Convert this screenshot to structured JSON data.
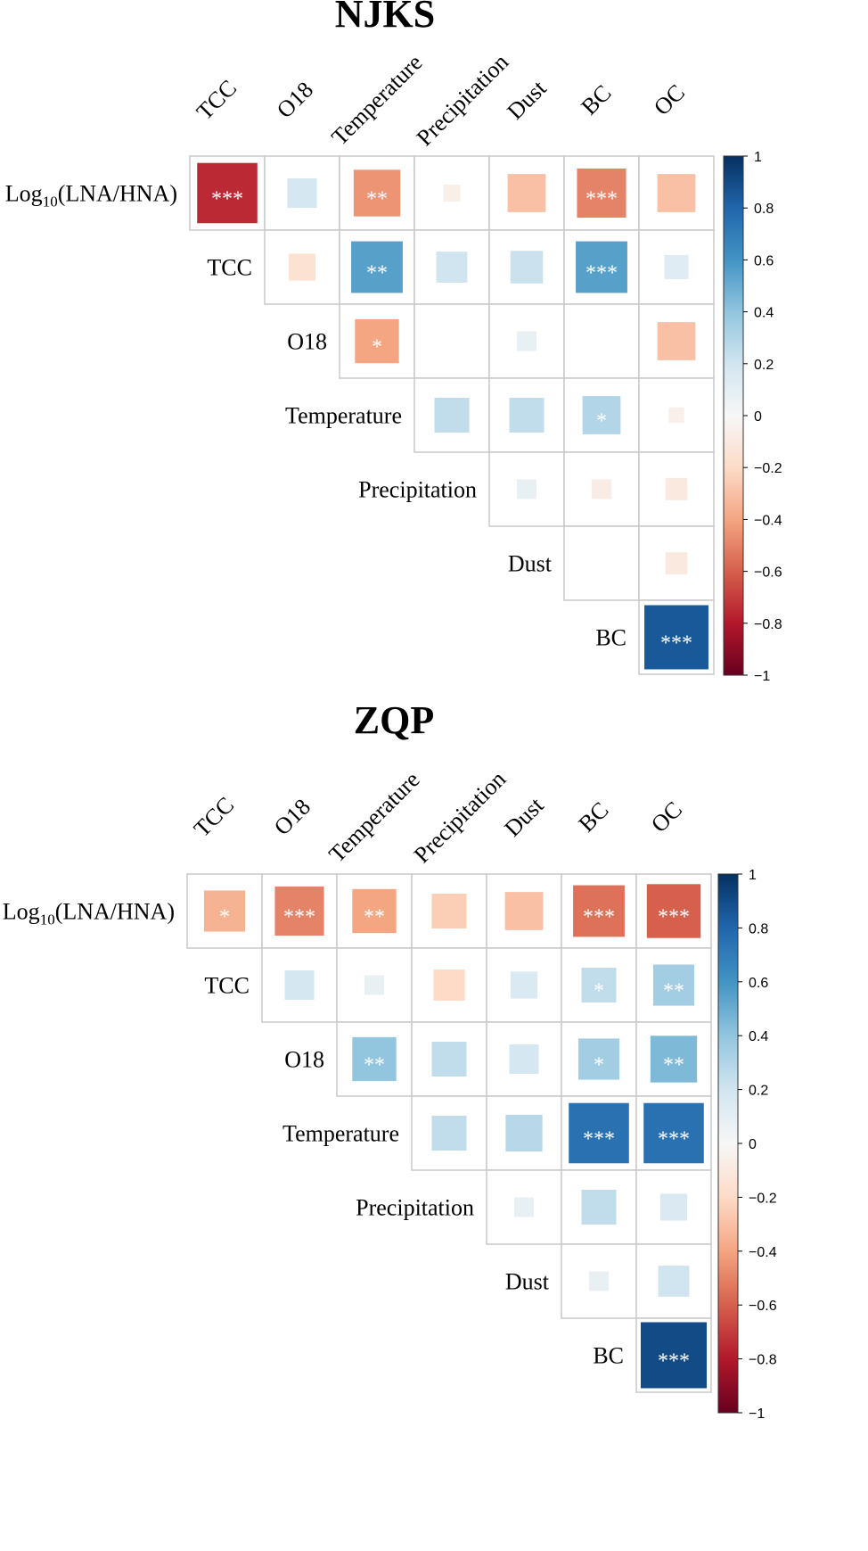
{
  "chart_data": [
    {
      "type": "heatmap",
      "subtype": "correlation-upper-triangle",
      "title": "NJKS",
      "column_labels": [
        "TCC",
        "O18",
        "Temperature",
        "Precipitation",
        "Dust",
        "BC",
        "OC"
      ],
      "row_labels": [
        "Log10(LNA/HNA)",
        "TCC",
        "O18",
        "Temperature",
        "Precipitation",
        "Dust",
        "BC"
      ],
      "row_label_parts": [
        [
          "Log",
          "10",
          "(LNA/HNA)"
        ],
        [
          "TCC"
        ],
        [
          "O18"
        ],
        [
          "Temperature"
        ],
        [
          "Precipitation"
        ],
        [
          "Dust"
        ],
        [
          "BC"
        ]
      ],
      "values": [
        [
          -0.75,
          0.18,
          -0.45,
          -0.06,
          -0.3,
          -0.5,
          -0.3
        ],
        [
          null,
          -0.15,
          0.55,
          0.2,
          0.22,
          0.55,
          0.12
        ],
        [
          null,
          null,
          -0.4,
          0.0,
          0.08,
          0.0,
          -0.3
        ],
        [
          null,
          null,
          null,
          0.25,
          0.25,
          0.3,
          -0.05
        ],
        [
          null,
          null,
          null,
          null,
          0.08,
          -0.08,
          -0.1
        ],
        [
          null,
          null,
          null,
          null,
          null,
          0.0,
          -0.1
        ],
        [
          null,
          null,
          null,
          null,
          null,
          null,
          0.85
        ]
      ],
      "significance": [
        [
          "***",
          "",
          "**",
          "",
          "",
          "***",
          ""
        ],
        [
          "",
          "",
          "**",
          "",
          "",
          "***",
          ""
        ],
        [
          "",
          "",
          "*",
          "",
          "",
          "",
          ""
        ],
        [
          "",
          "",
          "",
          "",
          "",
          "*",
          ""
        ],
        [
          "",
          "",
          "",
          "",
          "",
          "",
          ""
        ],
        [
          "",
          "",
          "",
          "",
          "",
          "",
          ""
        ],
        [
          "",
          "",
          "",
          "",
          "",
          "",
          "***"
        ]
      ],
      "colorbar": {
        "range": [
          -1,
          1
        ],
        "ticks": [
          "1",
          "0.8",
          "0.6",
          "0.4",
          "0.2",
          "0",
          "−0.2",
          "−0.4",
          "−0.6",
          "−0.8",
          "−1"
        ]
      }
    },
    {
      "type": "heatmap",
      "subtype": "correlation-upper-triangle",
      "title": "ZQP",
      "column_labels": [
        "TCC",
        "O18",
        "Temperature",
        "Precipitation",
        "Dust",
        "BC",
        "OC"
      ],
      "row_labels": [
        "Log10(LNA/HNA)",
        "TCC",
        "O18",
        "Temperature",
        "Precipitation",
        "Dust",
        "BC"
      ],
      "row_label_parts": [
        [
          "Log",
          "10",
          "(LNA/HNA)"
        ],
        [
          "TCC"
        ],
        [
          "O18"
        ],
        [
          "Temperature"
        ],
        [
          "Precipitation"
        ],
        [
          "Dust"
        ],
        [
          "BC"
        ]
      ],
      "values": [
        [
          -0.35,
          -0.5,
          -0.4,
          -0.25,
          -0.3,
          -0.55,
          -0.6
        ],
        [
          null,
          0.18,
          0.08,
          -0.2,
          0.15,
          0.25,
          0.35
        ],
        [
          null,
          null,
          0.4,
          0.25,
          0.18,
          0.35,
          0.45
        ],
        [
          null,
          null,
          null,
          0.25,
          0.28,
          0.75,
          0.75
        ],
        [
          null,
          null,
          null,
          null,
          0.08,
          0.25,
          0.15
        ],
        [
          null,
          null,
          null,
          null,
          null,
          0.08,
          0.2
        ],
        [
          null,
          null,
          null,
          null,
          null,
          null,
          0.9
        ]
      ],
      "significance": [
        [
          "*",
          "***",
          "**",
          "",
          "",
          "***",
          "***"
        ],
        [
          "",
          "",
          "",
          "",
          "",
          "*",
          "**"
        ],
        [
          "",
          "",
          "**",
          "",
          "",
          "*",
          "**"
        ],
        [
          "",
          "",
          "",
          "",
          "",
          "***",
          "***"
        ],
        [
          "",
          "",
          "",
          "",
          "",
          "",
          ""
        ],
        [
          "",
          "",
          "",
          "",
          "",
          "",
          ""
        ],
        [
          "",
          "",
          "",
          "",
          "",
          "",
          "***"
        ]
      ],
      "colorbar": {
        "range": [
          -1,
          1
        ],
        "ticks": [
          "1",
          "0.8",
          "0.6",
          "0.4",
          "0.2",
          "0",
          "−0.2",
          "−0.4",
          "−0.6",
          "−0.8",
          "−1"
        ]
      }
    }
  ]
}
